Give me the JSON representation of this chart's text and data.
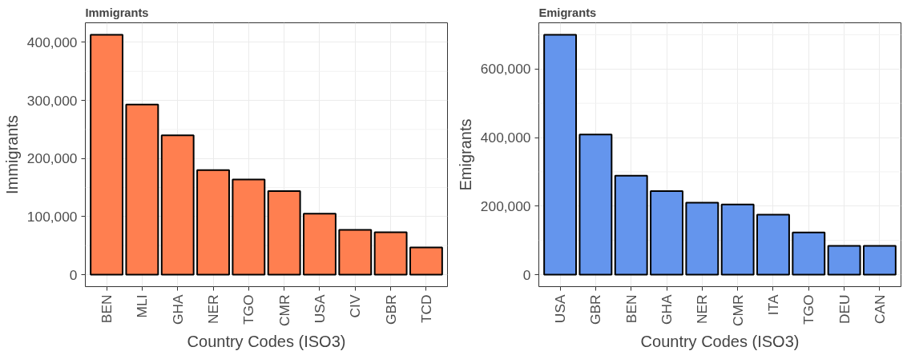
{
  "chart_data": [
    {
      "type": "bar",
      "title": "Immigrants",
      "xlabel": "Country Codes (ISO3)",
      "ylabel": "Immigrants",
      "categories": [
        "BEN",
        "MLI",
        "GHA",
        "NER",
        "TGO",
        "CMR",
        "USA",
        "CIV",
        "GBR",
        "TCD"
      ],
      "values": [
        413000,
        293000,
        240000,
        180000,
        164000,
        144000,
        105000,
        77000,
        73000,
        47000
      ],
      "color": "#ff7f50",
      "ylim": [
        -20600,
        433600
      ],
      "yticks": [
        {
          "value": 0,
          "label": "0"
        },
        {
          "value": 100000,
          "label": "100,000"
        },
        {
          "value": 200000,
          "label": "200,000"
        },
        {
          "value": 300000,
          "label": "300,000"
        },
        {
          "value": 400000,
          "label": "400,000"
        }
      ],
      "grid": true
    },
    {
      "type": "bar",
      "title": "Emigrants",
      "xlabel": "Country Codes (ISO3)",
      "ylabel": "Emigrants",
      "categories": [
        "USA",
        "GBR",
        "BEN",
        "GHA",
        "NER",
        "CMR",
        "ITA",
        "TGO",
        "DEU",
        "CAN"
      ],
      "values": [
        700000,
        409000,
        289000,
        244000,
        210000,
        205000,
        175000,
        123000,
        84000,
        84000
      ],
      "color": "#6495ed",
      "ylim": [
        -35000,
        735000
      ],
      "yticks": [
        {
          "value": 0,
          "label": "0"
        },
        {
          "value": 200000,
          "label": "200,000"
        },
        {
          "value": 400000,
          "label": "400,000"
        },
        {
          "value": 600000,
          "label": "600,000"
        }
      ],
      "grid": true
    }
  ]
}
